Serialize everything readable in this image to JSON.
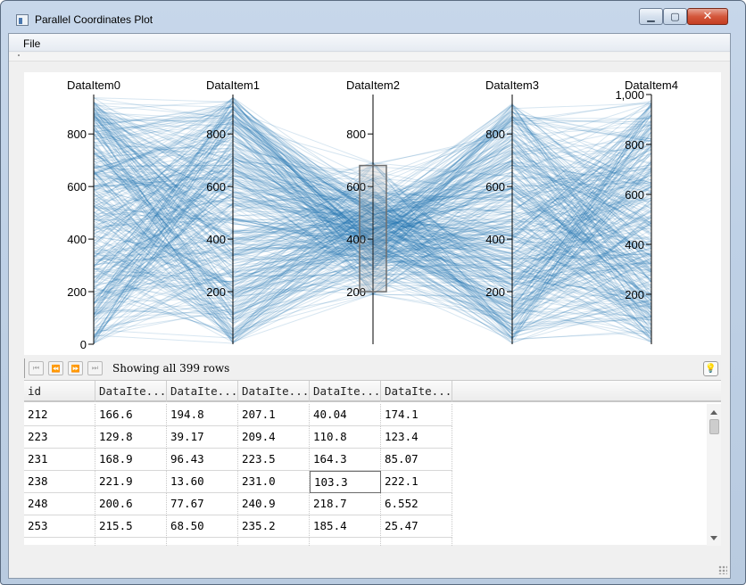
{
  "window": {
    "title": "Parallel Coordinates Plot",
    "icons": {
      "app": "app-window-icon",
      "minimize": "minimize-icon",
      "maximize": "maximize-icon",
      "close": "close-icon"
    }
  },
  "menu": {
    "items": [
      "File"
    ]
  },
  "chart_data": {
    "type": "parallel-coordinates",
    "line_color": "#1f77b4",
    "brush_color": "#888888",
    "axes": [
      {
        "label": "DataItem0",
        "range": [
          0,
          950
        ],
        "ticks": [
          0,
          200,
          400,
          600,
          800
        ],
        "tick_labels": [
          "0",
          "200",
          "400",
          "600",
          "800"
        ]
      },
      {
        "label": "DataItem1",
        "range": [
          0,
          950
        ],
        "ticks": [
          200,
          400,
          600,
          800
        ],
        "tick_labels": [
          "200",
          "400",
          "600",
          "800"
        ]
      },
      {
        "label": "DataItem2",
        "range": [
          0,
          950
        ],
        "ticks": [
          200,
          400,
          600,
          800
        ],
        "tick_labels": [
          "200",
          "400",
          "600",
          "800"
        ],
        "brush": [
          200,
          680
        ]
      },
      {
        "label": "DataItem3",
        "range": [
          0,
          950
        ],
        "ticks": [
          200,
          400,
          600,
          800
        ],
        "tick_labels": [
          "200",
          "400",
          "600",
          "800"
        ]
      },
      {
        "label": "DataItem4",
        "range": [
          0,
          1000
        ],
        "ticks": [
          200,
          400,
          600,
          800,
          1000
        ],
        "tick_labels": [
          "200",
          "400",
          "600",
          "800",
          "1,000"
        ]
      }
    ],
    "line_count": 399
  },
  "pager": {
    "status": "Showing all 399 rows",
    "buttons": [
      "first-page",
      "previous-page",
      "next-page",
      "last-page"
    ],
    "first_icon": "⏮",
    "prev_icon": "⏪",
    "next_icon": "⏩",
    "last_icon": "⏭",
    "bulb_icon": "💡"
  },
  "table": {
    "columns": [
      "id",
      "DataIte...",
      "DataIte...",
      "DataIte...",
      "DataIte...",
      "DataIte..."
    ],
    "rows": [
      [
        "212",
        "166.6",
        "194.8",
        "207.1",
        "40.04",
        "174.1"
      ],
      [
        "223",
        "129.8",
        "39.17",
        "209.4",
        "110.8",
        "123.4"
      ],
      [
        "231",
        "168.9",
        "96.43",
        "223.5",
        "164.3",
        "85.07"
      ],
      [
        "238",
        "221.9",
        "13.60",
        "231.0",
        "103.3",
        "222.1"
      ],
      [
        "248",
        "200.6",
        "77.67",
        "240.9",
        "218.7",
        "6.552"
      ],
      [
        "253",
        "215.5",
        "68.50",
        "235.2",
        "185.4",
        "25.47"
      ],
      [
        "",
        "",
        "",
        "",
        "",
        ""
      ]
    ]
  }
}
